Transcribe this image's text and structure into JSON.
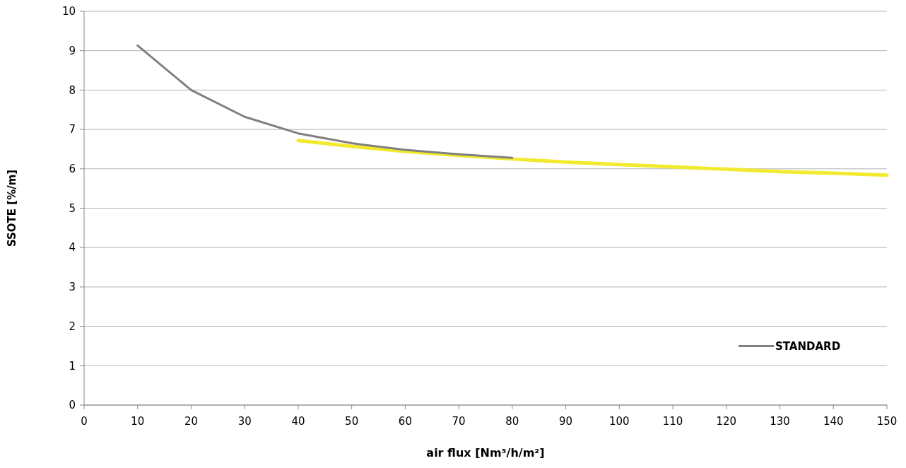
{
  "chart_data": {
    "type": "line",
    "xlabel": "air flux [Nm³/h/m²]",
    "ylabel": "SSOTE [%/m]",
    "xlim": [
      0,
      150
    ],
    "xticks": [
      0,
      10,
      20,
      30,
      40,
      50,
      60,
      70,
      80,
      90,
      100,
      110,
      120,
      130,
      140,
      150
    ],
    "ylim": [
      0,
      10
    ],
    "yticks": [
      0,
      1,
      2,
      3,
      4,
      5,
      6,
      7,
      8,
      9,
      10
    ],
    "grid": "y",
    "legend": "bottom right",
    "marker": "none",
    "line_style": "solid",
    "series": [
      {
        "color": "#f2ea2e",
        "x": [
          40,
          50,
          60,
          70,
          80,
          90,
          100,
          110,
          120,
          130,
          140,
          150
        ],
        "values": [
          6.72,
          6.57,
          6.44,
          6.34,
          6.25,
          6.17,
          6.11,
          6.05,
          5.99,
          5.93,
          5.89,
          5.84
        ]
      },
      {
        "name": "STANDARD",
        "color": "#808080",
        "x": [
          10,
          20,
          30,
          40,
          50,
          60,
          70,
          80
        ],
        "values": [
          9.13,
          8.0,
          7.32,
          6.9,
          6.65,
          6.48,
          6.37,
          6.28
        ]
      }
    ]
  }
}
